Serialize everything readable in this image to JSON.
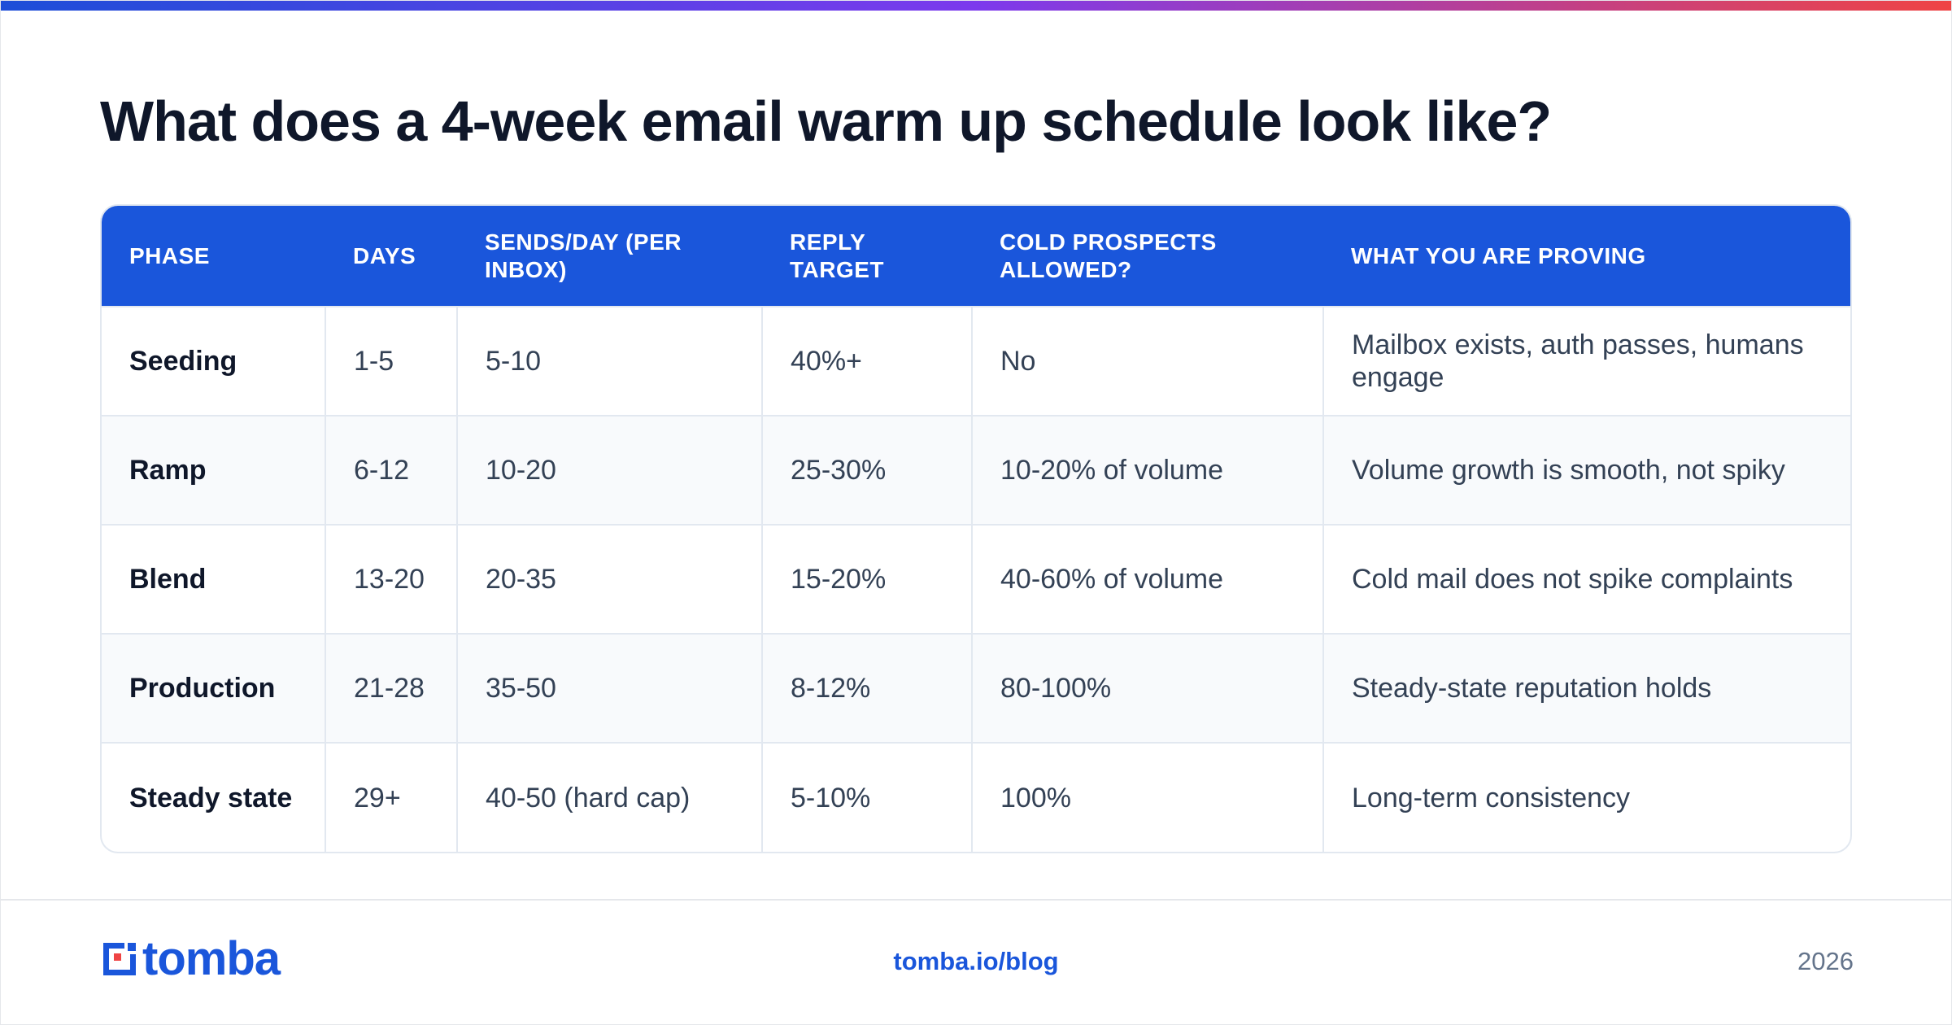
{
  "title": "What does a 4-week email warm up schedule look like?",
  "table": {
    "headers": [
      "PHASE",
      "DAYS",
      "SENDS/DAY (PER INBOX)",
      "REPLY TARGET",
      "COLD PROSPECTS ALLOWED?",
      "WHAT YOU ARE PROVING"
    ],
    "rows": [
      [
        "Seeding",
        "1-5",
        "5-10",
        "40%+",
        "No",
        "Mailbox exists, auth passes, humans engage"
      ],
      [
        "Ramp",
        "6-12",
        "10-20",
        "25-30%",
        "10-20% of volume",
        "Volume growth is smooth, not spiky"
      ],
      [
        "Blend",
        "13-20",
        "20-35",
        "15-20%",
        "40-60% of volume",
        "Cold mail does not spike complaints"
      ],
      [
        "Production",
        "21-28",
        "35-50",
        "8-12%",
        "80-100%",
        "Steady-state reputation holds"
      ],
      [
        "Steady state",
        "29+",
        "40-50 (hard cap)",
        "5-10%",
        "100%",
        "Long-term consistency"
      ]
    ]
  },
  "footer": {
    "logo_text": "tomba",
    "link": "tomba.io/blog",
    "year": "2026"
  },
  "colors": {
    "accent": "#1a56db",
    "gradient_start": "#1d4ed8",
    "gradient_end": "#ef4444"
  }
}
